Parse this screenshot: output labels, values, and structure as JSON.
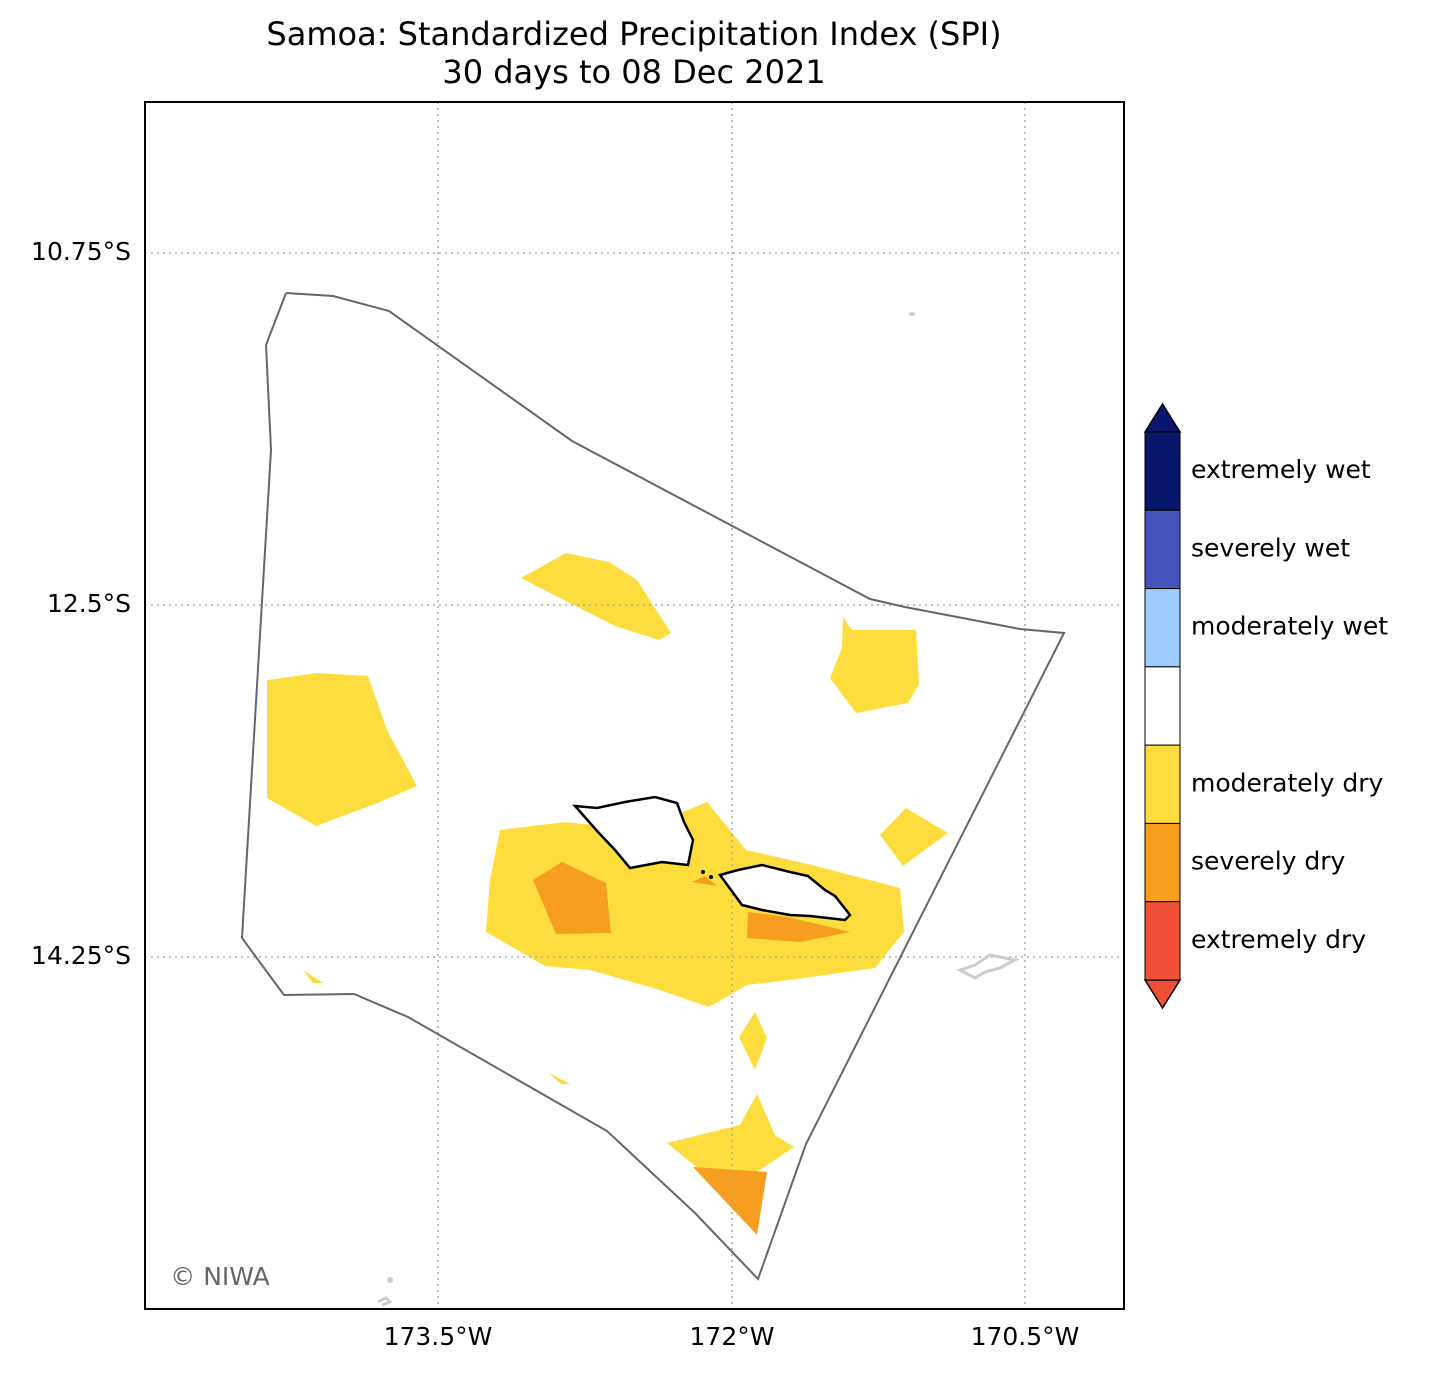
{
  "header": {
    "title": "Samoa: Standardized Precipitation Index (SPI)",
    "subtitle": "30 days to 08 Dec 2021"
  },
  "map": {
    "x_labels": [
      "173.5°W",
      "172°W",
      "170.5°W"
    ],
    "y_labels": [
      "10.75°S",
      "12.5°S",
      "14.25°S"
    ],
    "credit": "© NIWA"
  },
  "legend": {
    "items": [
      {
        "label": "extremely wet",
        "color": "#08166b"
      },
      {
        "label": "severely wet",
        "color": "#4753bd"
      },
      {
        "label": "moderately wet",
        "color": "#9ccbff"
      },
      {
        "color": "#ffffff"
      },
      {
        "label": "moderately dry",
        "color": "#fddd3d"
      },
      {
        "label": "severely dry",
        "color": "#f59e20"
      },
      {
        "label": "extremely dry",
        "color": "#f04e37"
      }
    ]
  }
}
